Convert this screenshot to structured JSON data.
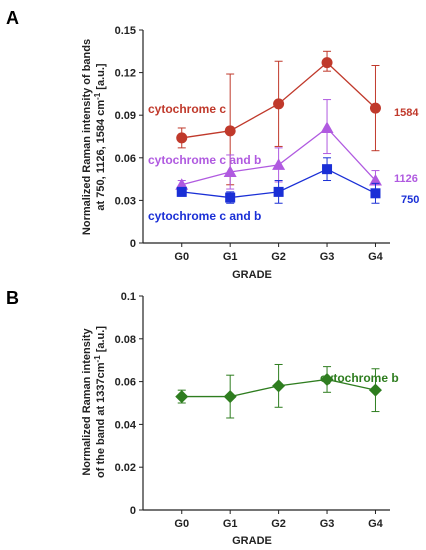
{
  "chart_data": [
    {
      "type": "line",
      "panel_label": "A",
      "categories": [
        "G0",
        "G1",
        "G2",
        "G3",
        "G4"
      ],
      "xlabel": "GRADE",
      "ylabel_line1": "Normalized Raman intensity of bands",
      "ylabel_line2": "at 750, 1126, 1584 cm",
      "ylabel_sup": "-1",
      "ylabel_unit": " [a.u.]",
      "ylim": [
        0,
        0.15
      ],
      "yticks": [
        "0",
        "0.03",
        "0.06",
        "0.09",
        "0.12",
        "0.15"
      ],
      "grid": false,
      "series": [
        {
          "name": "cytochrome c",
          "end_label": "1584",
          "marker": "circle",
          "color": "#c0392b",
          "values": [
            0.074,
            0.079,
            0.098,
            0.127,
            0.095
          ],
          "err_low": [
            0.007,
            0.038,
            0.03,
            0.006,
            0.03
          ],
          "err_high": [
            0.007,
            0.04,
            0.03,
            0.008,
            0.03
          ]
        },
        {
          "name": "cytochrome c and b",
          "end_label": "1126",
          "marker": "triangle",
          "color": "#b05ae0",
          "values": [
            0.041,
            0.05,
            0.055,
            0.081,
            0.044
          ],
          "err_low": [
            0.003,
            0.012,
            0.012,
            0.018,
            0.007
          ],
          "err_high": [
            0.003,
            0.012,
            0.012,
            0.02,
            0.007
          ]
        },
        {
          "name": "cytochrome c and b",
          "end_label": "750",
          "marker": "square",
          "color": "#1a2fd6",
          "values": [
            0.036,
            0.032,
            0.036,
            0.052,
            0.035
          ],
          "err_low": [
            0.003,
            0.004,
            0.008,
            0.008,
            0.007
          ],
          "err_high": [
            0.003,
            0.004,
            0.008,
            0.008,
            0.007
          ]
        }
      ]
    },
    {
      "type": "line",
      "panel_label": "B",
      "categories": [
        "G0",
        "G1",
        "G2",
        "G3",
        "G4"
      ],
      "xlabel": "GRADE",
      "ylabel_line1": "Normalized Raman intensity",
      "ylabel_line2": "of the band at  1337cm",
      "ylabel_sup": "-1",
      "ylabel_unit": " [a.u.]",
      "ylim": [
        0,
        0.1
      ],
      "yticks": [
        "0",
        "0.02",
        "0.04",
        "0.06",
        "0.08",
        "0.1"
      ],
      "grid": false,
      "series": [
        {
          "name": "cytochrome b",
          "marker": "diamond",
          "color": "#2e7d1f",
          "values": [
            0.053,
            0.053,
            0.058,
            0.061,
            0.056
          ],
          "err_low": [
            0.003,
            0.01,
            0.01,
            0.006,
            0.01
          ],
          "err_high": [
            0.003,
            0.01,
            0.01,
            0.006,
            0.01
          ]
        }
      ]
    }
  ]
}
